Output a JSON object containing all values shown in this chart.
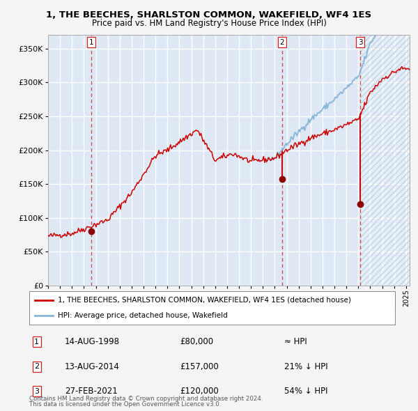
{
  "title1": "1, THE BEECHES, SHARLSTON COMMON, WAKEFIELD, WF4 1ES",
  "title2": "Price paid vs. HM Land Registry's House Price Index (HPI)",
  "bg_color": "#dde8f4",
  "hatch_color": "#c5d8ed",
  "grid_color": "#ffffff",
  "red_line_color": "#cc0000",
  "blue_line_color": "#87b5d8",
  "dashed_line_color": "#cc4444",
  "sale1_date": 1998.617,
  "sale1_price": 80000,
  "sale2_date": 2014.617,
  "sale2_price": 157000,
  "sale3_date": 2021.162,
  "sale3_price": 120000,
  "ylim_max": 370000,
  "xmin": 1995.0,
  "xmax": 2025.3,
  "yticks": [
    0,
    50000,
    100000,
    150000,
    200000,
    250000,
    300000,
    350000
  ],
  "legend_label1": "1, THE BEECHES, SHARLSTON COMMON, WAKEFIELD, WF4 1ES (detached house)",
  "legend_label2": "HPI: Average price, detached house, Wakefield",
  "table_rows": [
    {
      "num": "1",
      "date": "14-AUG-1998",
      "price": "£80,000",
      "hpi": "≈ HPI"
    },
    {
      "num": "2",
      "date": "13-AUG-2014",
      "price": "£157,000",
      "hpi": "21% ↓ HPI"
    },
    {
      "num": "3",
      "date": "27-FEB-2021",
      "price": "£120,000",
      "hpi": "54% ↓ HPI"
    }
  ],
  "footnote1": "Contains HM Land Registry data © Crown copyright and database right 2024.",
  "footnote2": "This data is licensed under the Open Government Licence v3.0."
}
